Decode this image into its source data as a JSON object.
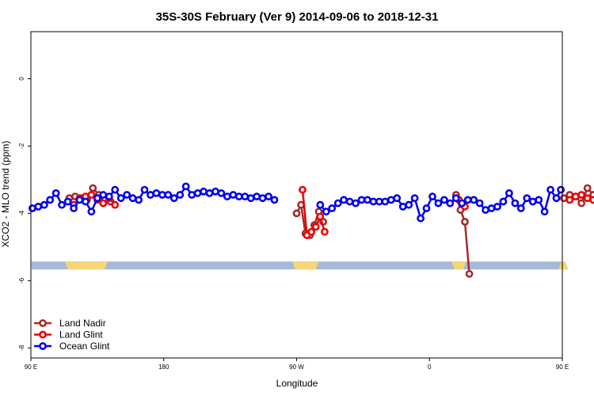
{
  "chart_data": {
    "type": "line",
    "title": "35S-30S February (Ver 9)   2014-09-06 to 2018-12-31",
    "xlabel": "Longitude",
    "ylabel": "XCO2 - MLO trend (ppm)",
    "xlim": [
      90,
      450
    ],
    "ylim": [
      -8.3,
      1.4
    ],
    "x_ticks": [
      {
        "value": 90,
        "label": "90 E"
      },
      {
        "value": 180,
        "label": "180"
      },
      {
        "value": 270,
        "label": "90 W"
      },
      {
        "value": 360,
        "label": "0"
      },
      {
        "value": 450,
        "label": "90 E"
      },
      {
        "value": 540,
        "label": "180"
      }
    ],
    "y_ticks": [
      {
        "value": 0,
        "label": "0"
      },
      {
        "value": -2,
        "label": "-2"
      },
      {
        "value": -4,
        "label": "-4"
      },
      {
        "value": -6,
        "label": "-6"
      },
      {
        "value": -8,
        "label": "-8"
      }
    ],
    "land_strip": {
      "y": -5.55,
      "ocean_color": "#a4bad6",
      "land_color": "#f6d576",
      "land_segments": [
        [
          113,
          142
        ],
        [
          267,
          285
        ],
        [
          375,
          385
        ],
        [
          452,
          488
        ]
      ]
    },
    "legend": {
      "position": "bottom-left",
      "entries": [
        "Land Nadir",
        "Land Glint",
        "Ocean Glint"
      ]
    },
    "series": [
      {
        "name": "Land Nadir",
        "color": "#a52a2a",
        "segments": [
          [
            [
              116,
              -3.55
            ],
            [
              120,
              -3.5
            ],
            [
              124,
              -3.55
            ],
            [
              128,
              -3.6
            ],
            [
              132,
              -3.25
            ],
            [
              136,
              -3.45
            ],
            [
              140,
              -3.55
            ],
            [
              144,
              -3.65
            ]
          ],
          [
            [
              270,
              -4.0
            ],
            [
              273,
              -3.75
            ],
            [
              276,
              -4.6
            ],
            [
              279,
              -4.65
            ],
            [
              282,
              -4.35
            ],
            [
              285,
              -3.95
            ],
            [
              288,
              -4.25
            ]
          ],
          [
            [
              378,
              -3.45
            ],
            [
              381,
              -3.9
            ],
            [
              384,
              -4.25
            ],
            [
              387,
              -5.8
            ]
          ],
          [
            [
              451,
              -3.55
            ],
            [
              455,
              -3.45
            ],
            [
              459,
              -3.5
            ],
            [
              463,
              -3.7
            ],
            [
              467,
              -3.25
            ],
            [
              471,
              -3.45
            ],
            [
              475,
              -3.5
            ]
          ]
        ]
      },
      {
        "name": "Land Glint",
        "color": "#ee0000",
        "segments": [
          [
            [
              119,
              -3.75
            ],
            [
              123,
              -3.55
            ],
            [
              127,
              -3.5
            ],
            [
              131,
              -3.45
            ],
            [
              135,
              -3.6
            ],
            [
              139,
              -3.7
            ],
            [
              143,
              -3.55
            ],
            [
              147,
              -3.75
            ]
          ],
          [
            [
              274,
              -3.3
            ],
            [
              277,
              -4.65
            ],
            [
              280,
              -4.55
            ],
            [
              283,
              -4.4
            ],
            [
              286,
              -4.1
            ],
            [
              289,
              -4.55
            ]
          ],
          [
            [
              380,
              -3.6
            ],
            [
              384,
              -3.8
            ]
          ],
          [
            [
              455,
              -3.6
            ],
            [
              459,
              -3.5
            ],
            [
              463,
              -3.45
            ],
            [
              467,
              -3.55
            ],
            [
              471,
              -3.6
            ],
            [
              475,
              -3.85
            ]
          ]
        ]
      },
      {
        "name": "Ocean Glint",
        "color": "#0000ee",
        "segments": [
          [
            [
              91,
              -3.85
            ],
            [
              95,
              -3.8
            ],
            [
              99,
              -3.75
            ],
            [
              103,
              -3.6
            ],
            [
              107,
              -3.4
            ],
            [
              111,
              -3.75
            ],
            [
              115,
              -3.65
            ],
            [
              119,
              -3.85
            ],
            [
              123,
              -3.6
            ],
            [
              127,
              -3.65
            ],
            [
              131,
              -3.95
            ],
            [
              135,
              -3.55
            ],
            [
              139,
              -3.45
            ],
            [
              143,
              -3.5
            ],
            [
              147,
              -3.3
            ],
            [
              151,
              -3.55
            ],
            [
              155,
              -3.45
            ],
            [
              159,
              -3.55
            ],
            [
              163,
              -3.6
            ],
            [
              167,
              -3.3
            ],
            [
              171,
              -3.45
            ],
            [
              175,
              -3.4
            ],
            [
              179,
              -3.45
            ],
            [
              183,
              -3.45
            ],
            [
              187,
              -3.55
            ],
            [
              191,
              -3.45
            ],
            [
              195,
              -3.2
            ],
            [
              199,
              -3.45
            ],
            [
              203,
              -3.4
            ],
            [
              207,
              -3.35
            ],
            [
              211,
              -3.4
            ],
            [
              215,
              -3.35
            ],
            [
              219,
              -3.4
            ],
            [
              223,
              -3.5
            ],
            [
              227,
              -3.45
            ],
            [
              231,
              -3.5
            ],
            [
              235,
              -3.5
            ],
            [
              239,
              -3.55
            ],
            [
              243,
              -3.5
            ],
            [
              247,
              -3.55
            ],
            [
              251,
              -3.5
            ],
            [
              255,
              -3.6
            ]
          ],
          [
            [
              286,
              -3.75
            ],
            [
              290,
              -3.95
            ],
            [
              294,
              -3.85
            ],
            [
              298,
              -3.7
            ],
            [
              302,
              -3.6
            ],
            [
              306,
              -3.65
            ],
            [
              310,
              -3.7
            ],
            [
              314,
              -3.6
            ],
            [
              318,
              -3.6
            ],
            [
              322,
              -3.65
            ],
            [
              326,
              -3.65
            ],
            [
              330,
              -3.65
            ],
            [
              334,
              -3.6
            ],
            [
              338,
              -3.55
            ],
            [
              342,
              -3.8
            ],
            [
              346,
              -3.75
            ],
            [
              350,
              -3.55
            ],
            [
              354,
              -4.15
            ],
            [
              358,
              -3.85
            ],
            [
              362,
              -3.5
            ],
            [
              366,
              -3.7
            ],
            [
              370,
              -3.6
            ],
            [
              374,
              -3.7
            ],
            [
              378,
              -3.55
            ],
            [
              382,
              -3.7
            ],
            [
              386,
              -3.6
            ],
            [
              390,
              -3.6
            ],
            [
              394,
              -3.7
            ],
            [
              398,
              -3.9
            ],
            [
              402,
              -3.85
            ],
            [
              406,
              -3.8
            ],
            [
              410,
              -3.65
            ],
            [
              414,
              -3.4
            ],
            [
              418,
              -3.7
            ],
            [
              422,
              -3.85
            ],
            [
              426,
              -3.55
            ],
            [
              430,
              -3.65
            ],
            [
              434,
              -3.6
            ],
            [
              438,
              -3.95
            ],
            [
              442,
              -3.3
            ],
            [
              446,
              -3.55
            ],
            [
              449,
              -3.3
            ]
          ]
        ]
      }
    ]
  }
}
